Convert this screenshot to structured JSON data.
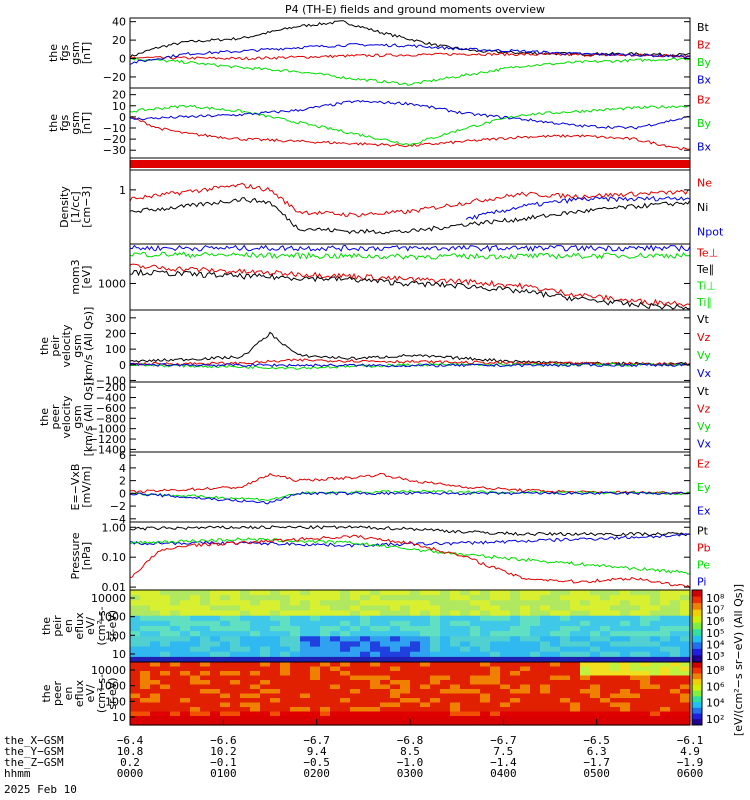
{
  "title": "P4 (TH-E) fields and ground moments overview",
  "colors": {
    "black": "#000000",
    "red": "#e00000",
    "green": "#00dd00",
    "blue": "#0000e0",
    "bg": "#ffffff"
  },
  "chart_data": [
    {
      "id": "fgs_gsm",
      "type": "line",
      "ylabel": [
        "the",
        "fgs",
        "gsm",
        "[nT]"
      ],
      "yticks": [
        "40",
        "20",
        "0",
        "−20"
      ],
      "ylim": [
        -32,
        44
      ],
      "legend": [
        {
          "name": "Bt",
          "color": "black"
        },
        {
          "name": "Bz",
          "color": "red"
        },
        {
          "name": "By",
          "color": "green"
        },
        {
          "name": "Bx",
          "color": "blue"
        }
      ],
      "series": [
        {
          "name": "Bt",
          "color": "black",
          "x": [
            0,
            0.05,
            0.1,
            0.2,
            0.3,
            0.38,
            0.45,
            0.55,
            0.62,
            0.7,
            0.8,
            0.9,
            1
          ],
          "y": [
            2,
            12,
            18,
            22,
            35,
            40,
            28,
            14,
            8,
            6,
            5,
            5,
            4
          ]
        },
        {
          "name": "Bz",
          "color": "red",
          "x": [
            0,
            0.2,
            0.4,
            0.6,
            0.8,
            1
          ],
          "y": [
            1,
            0,
            3,
            5,
            4,
            3
          ]
        },
        {
          "name": "By",
          "color": "green",
          "x": [
            0,
            0.1,
            0.2,
            0.3,
            0.4,
            0.5,
            0.6,
            0.7,
            0.8,
            0.9,
            1
          ],
          "y": [
            0,
            -4,
            -10,
            -14,
            -22,
            -28,
            -18,
            -8,
            -4,
            -2,
            0
          ]
        },
        {
          "name": "Bx",
          "color": "blue",
          "x": [
            0,
            0.05,
            0.1,
            0.2,
            0.3,
            0.4,
            0.5,
            0.6,
            0.7,
            0.8,
            0.9,
            1
          ],
          "y": [
            -5,
            0,
            5,
            8,
            12,
            15,
            14,
            10,
            8,
            5,
            4,
            2
          ]
        }
      ]
    },
    {
      "id": "fgs_gsm_detail",
      "type": "line",
      "ylabel": [
        "the",
        "fgs",
        "gsm",
        "[nT]"
      ],
      "yticks": [
        "20",
        "10",
        "0",
        "−10",
        "−20",
        "−30"
      ],
      "ylim": [
        -37,
        26
      ],
      "legend": [
        {
          "name": "Bz",
          "color": "red"
        },
        {
          "name": "By",
          "color": "green"
        },
        {
          "name": "Bx",
          "color": "blue"
        }
      ],
      "series": [
        {
          "name": "Bz",
          "color": "red",
          "x": [
            0,
            0.05,
            0.1,
            0.2,
            0.3,
            0.4,
            0.5,
            0.6,
            0.7,
            0.8,
            0.9,
            1
          ],
          "y": [
            0,
            -10,
            -15,
            -20,
            -22,
            -24,
            -26,
            -22,
            -18,
            -17,
            -20,
            -30
          ]
        },
        {
          "name": "By",
          "color": "green",
          "x": [
            0,
            0.1,
            0.2,
            0.3,
            0.4,
            0.5,
            0.6,
            0.7,
            0.8,
            0.9,
            1
          ],
          "y": [
            5,
            10,
            5,
            -5,
            -15,
            -25,
            -10,
            2,
            5,
            8,
            10
          ]
        },
        {
          "name": "Bx",
          "color": "blue",
          "x": [
            0,
            0.1,
            0.2,
            0.3,
            0.4,
            0.5,
            0.6,
            0.7,
            0.8,
            0.9,
            1
          ],
          "y": [
            -2,
            0,
            2,
            6,
            14,
            12,
            3,
            -2,
            -8,
            -10,
            0
          ]
        }
      ]
    },
    {
      "id": "density",
      "type": "line",
      "log": true,
      "ylabel": [
        "Density",
        "[1/cc]",
        "[cm−3]"
      ],
      "yticks": [
        "1"
      ],
      "ylim": [
        0.05,
        3
      ],
      "legend": [
        {
          "name": "Ne",
          "color": "red"
        },
        {
          "name": "Ni",
          "color": "black"
        },
        {
          "name": "Npot",
          "color": "blue"
        }
      ],
      "series": [
        {
          "name": "Ne",
          "color": "red",
          "x": [
            0,
            0.1,
            0.2,
            0.25,
            0.3,
            0.4,
            0.5,
            0.6,
            0.7,
            0.8,
            0.9,
            1
          ],
          "y": [
            0.6,
            0.9,
            1.3,
            1.0,
            0.3,
            0.25,
            0.3,
            0.5,
            0.8,
            0.7,
            0.8,
            0.9
          ]
        },
        {
          "name": "Ni",
          "color": "black",
          "x": [
            0,
            0.1,
            0.2,
            0.25,
            0.3,
            0.4,
            0.5,
            0.6,
            0.7,
            0.8,
            0.9,
            1
          ],
          "y": [
            0.3,
            0.4,
            0.6,
            0.5,
            0.12,
            0.1,
            0.1,
            0.15,
            0.2,
            0.3,
            0.4,
            0.5
          ]
        },
        {
          "name": "Npot",
          "color": "blue",
          "x": [
            0.6,
            0.7,
            0.8,
            0.9,
            1
          ],
          "y": [
            0.2,
            0.4,
            0.6,
            0.6,
            0.65
          ]
        }
      ]
    },
    {
      "id": "temperature",
      "type": "line",
      "log": true,
      "ylabel": [
        "mom3",
        "[eV]"
      ],
      "yticks": [
        "1000"
      ],
      "ylim": [
        300,
        6000
      ],
      "legend": [
        {
          "name": "Te⊥",
          "color": "red"
        },
        {
          "name": "Te∥",
          "color": "black"
        },
        {
          "name": "Ti⊥",
          "color": "green"
        },
        {
          "name": "Ti∥",
          "color": "green"
        }
      ],
      "series": [
        {
          "name": "Te⊥",
          "color": "blue",
          "x": [
            0,
            1
          ],
          "y": [
            5000,
            5000
          ]
        },
        {
          "name": "Ti∥",
          "color": "green",
          "x": [
            0,
            0.5,
            1
          ],
          "y": [
            3800,
            3400,
            3600
          ]
        },
        {
          "name": "Te⊥",
          "color": "red",
          "x": [
            0,
            0.2,
            0.4,
            0.5,
            0.6,
            0.7,
            0.8,
            0.9,
            1
          ],
          "y": [
            2200,
            1700,
            1400,
            1200,
            1100,
            900,
            600,
            450,
            400
          ]
        },
        {
          "name": "Te∥",
          "color": "black",
          "x": [
            0,
            0.2,
            0.4,
            0.5,
            0.6,
            0.7,
            0.8,
            0.9,
            1
          ],
          "y": [
            1700,
            1400,
            1200,
            1000,
            900,
            700,
            500,
            380,
            330
          ]
        }
      ]
    },
    {
      "id": "velocity",
      "type": "line",
      "ylabel": [
        "the",
        "peir",
        "velocity",
        "gsm",
        "[km/s (All Qs)]"
      ],
      "yticks": [
        "300",
        "200",
        "100",
        "0",
        "−100"
      ],
      "ylim": [
        -110,
        350
      ],
      "legend": [
        {
          "name": "Vt",
          "color": "black"
        },
        {
          "name": "Vz",
          "color": "red"
        },
        {
          "name": "Vy",
          "color": "green"
        },
        {
          "name": "Vx",
          "color": "blue"
        }
      ],
      "series": [
        {
          "name": "Vt",
          "color": "black",
          "x": [
            0,
            0.2,
            0.25,
            0.3,
            0.4,
            0.5,
            0.6,
            0.7,
            0.8,
            1
          ],
          "y": [
            20,
            50,
            200,
            60,
            40,
            60,
            40,
            20,
            10,
            5
          ]
        },
        {
          "name": "Vz",
          "color": "red",
          "x": [
            0,
            0.2,
            0.3,
            0.5,
            0.7,
            1
          ],
          "y": [
            5,
            10,
            30,
            20,
            10,
            5
          ]
        },
        {
          "name": "Vy",
          "color": "green",
          "x": [
            0,
            0.3,
            0.5,
            1
          ],
          "y": [
            0,
            -20,
            0,
            0
          ]
        },
        {
          "name": "Vx",
          "color": "blue",
          "x": [
            0,
            0.5,
            1
          ],
          "y": [
            0,
            -5,
            0
          ]
        }
      ]
    },
    {
      "id": "velocity_eer",
      "type": "line",
      "ylabel": [
        "the",
        "peer",
        "velocity",
        "gsm",
        "[km/s (All Qs)]"
      ],
      "yticks": [
        "−200",
        "−400",
        "−600",
        "−800",
        "−1000",
        "−1200",
        "−1400"
      ],
      "ylim": [
        -1450,
        -100
      ],
      "legend": [
        {
          "name": "Vt",
          "color": "black"
        },
        {
          "name": "Vz",
          "color": "red"
        },
        {
          "name": "Vy",
          "color": "green"
        },
        {
          "name": "Vx",
          "color": "blue"
        }
      ],
      "series": []
    },
    {
      "id": "efield",
      "type": "line",
      "ylabel": [
        "E=−VxB",
        "[mV/m]"
      ],
      "yticks": [
        "6",
        "4",
        "2",
        "0",
        "−2",
        "−4"
      ],
      "ylim": [
        -4.5,
        6.5
      ],
      "legend": [
        {
          "name": "Ez",
          "color": "red"
        },
        {
          "name": "Ey",
          "color": "green"
        },
        {
          "name": "Ex",
          "color": "blue"
        }
      ],
      "series": [
        {
          "name": "Ez",
          "color": "red",
          "x": [
            0,
            0.2,
            0.25,
            0.3,
            0.4,
            0.45,
            0.5,
            0.6,
            0.7,
            0.8,
            1
          ],
          "y": [
            0.2,
            1,
            3,
            2,
            2.5,
            3,
            2,
            1,
            0.5,
            0.2,
            0.1
          ]
        },
        {
          "name": "Ey",
          "color": "green",
          "x": [
            0,
            0.25,
            0.3,
            0.5,
            1
          ],
          "y": [
            0,
            -1,
            0,
            0.3,
            0
          ]
        },
        {
          "name": "Ex",
          "color": "blue",
          "x": [
            0,
            0.25,
            0.3,
            1
          ],
          "y": [
            0,
            -1.5,
            0,
            0
          ]
        }
      ]
    },
    {
      "id": "pressure",
      "type": "line",
      "log": true,
      "ylabel": [
        "Pressure",
        "[nPa]"
      ],
      "yticks": [
        "1.00",
        "0.10",
        "0.01"
      ],
      "ylim": [
        0.008,
        1.5
      ],
      "legend": [
        {
          "name": "Pt",
          "color": "black"
        },
        {
          "name": "Pb",
          "color": "red"
        },
        {
          "name": "Pe",
          "color": "green"
        },
        {
          "name": "Pi",
          "color": "blue"
        }
      ],
      "series": [
        {
          "name": "Pt",
          "color": "black",
          "x": [
            0,
            0.2,
            0.4,
            0.5,
            0.6,
            0.7,
            0.8,
            1
          ],
          "y": [
            0.9,
            1.0,
            1.0,
            0.9,
            0.7,
            0.6,
            0.6,
            0.6
          ]
        },
        {
          "name": "Pi",
          "color": "blue",
          "x": [
            0,
            0.2,
            0.4,
            0.6,
            0.8,
            1
          ],
          "y": [
            0.3,
            0.3,
            0.25,
            0.3,
            0.4,
            0.55
          ]
        },
        {
          "name": "Pe",
          "color": "green",
          "x": [
            0,
            0.2,
            0.4,
            0.6,
            0.8,
            1
          ],
          "y": [
            0.3,
            0.4,
            0.3,
            0.12,
            0.06,
            0.03
          ]
        },
        {
          "name": "Pb",
          "color": "red",
          "x": [
            0,
            0.05,
            0.1,
            0.2,
            0.3,
            0.4,
            0.5,
            0.6,
            0.7,
            0.8,
            0.9,
            1
          ],
          "y": [
            0.02,
            0.15,
            0.25,
            0.3,
            0.4,
            0.5,
            0.3,
            0.1,
            0.02,
            0.015,
            0.02,
            0.01
          ]
        }
      ]
    },
    {
      "id": "spec_ion",
      "type": "heatmap",
      "ylabel": [
        "the",
        "peir",
        "en",
        "eflux",
        "eV/",
        "(cm²-s-",
        "sr-eV)"
      ],
      "yticks": [
        "10000",
        "1000",
        "100",
        "10"
      ]
    },
    {
      "id": "spec_ele",
      "type": "heatmap",
      "ylabel": [
        "the",
        "peer",
        "en",
        "eflux",
        "eV/",
        "(cm²-s-",
        "sr-eV)"
      ],
      "yticks": [
        "10000",
        "1000",
        "100",
        "10"
      ]
    }
  ],
  "colorbar": {
    "ion_ticks": [
      "10⁸",
      "10⁷",
      "10⁶",
      "10⁵",
      "10⁴",
      "10³"
    ],
    "ele_ticks": [
      "10⁸",
      "10⁶",
      "10⁴",
      "10²"
    ],
    "label": "[eV/(cm²−s sr−eV) (All Qs)]"
  },
  "footer": {
    "rows": [
      {
        "label": "the_X−GSM",
        "values": [
          "−6.4",
          "−6.6",
          "−6.7",
          "−6.8",
          "−6.7",
          "−6.5",
          "−6.1"
        ]
      },
      {
        "label": "the_Y−GSM",
        "values": [
          "10.8",
          "10.2",
          "9.4",
          "8.5",
          "7.5",
          "6.3",
          "4.9"
        ]
      },
      {
        "label": "the_Z−GSM",
        "values": [
          "0.2",
          "−0.1",
          "−0.5",
          "−1.0",
          "−1.4",
          "−1.7",
          "−1.9"
        ]
      },
      {
        "label": "hhmm",
        "values": [
          "0000",
          "0100",
          "0200",
          "0300",
          "0400",
          "0500",
          "0600"
        ]
      }
    ],
    "date": "2025 Feb 10"
  }
}
